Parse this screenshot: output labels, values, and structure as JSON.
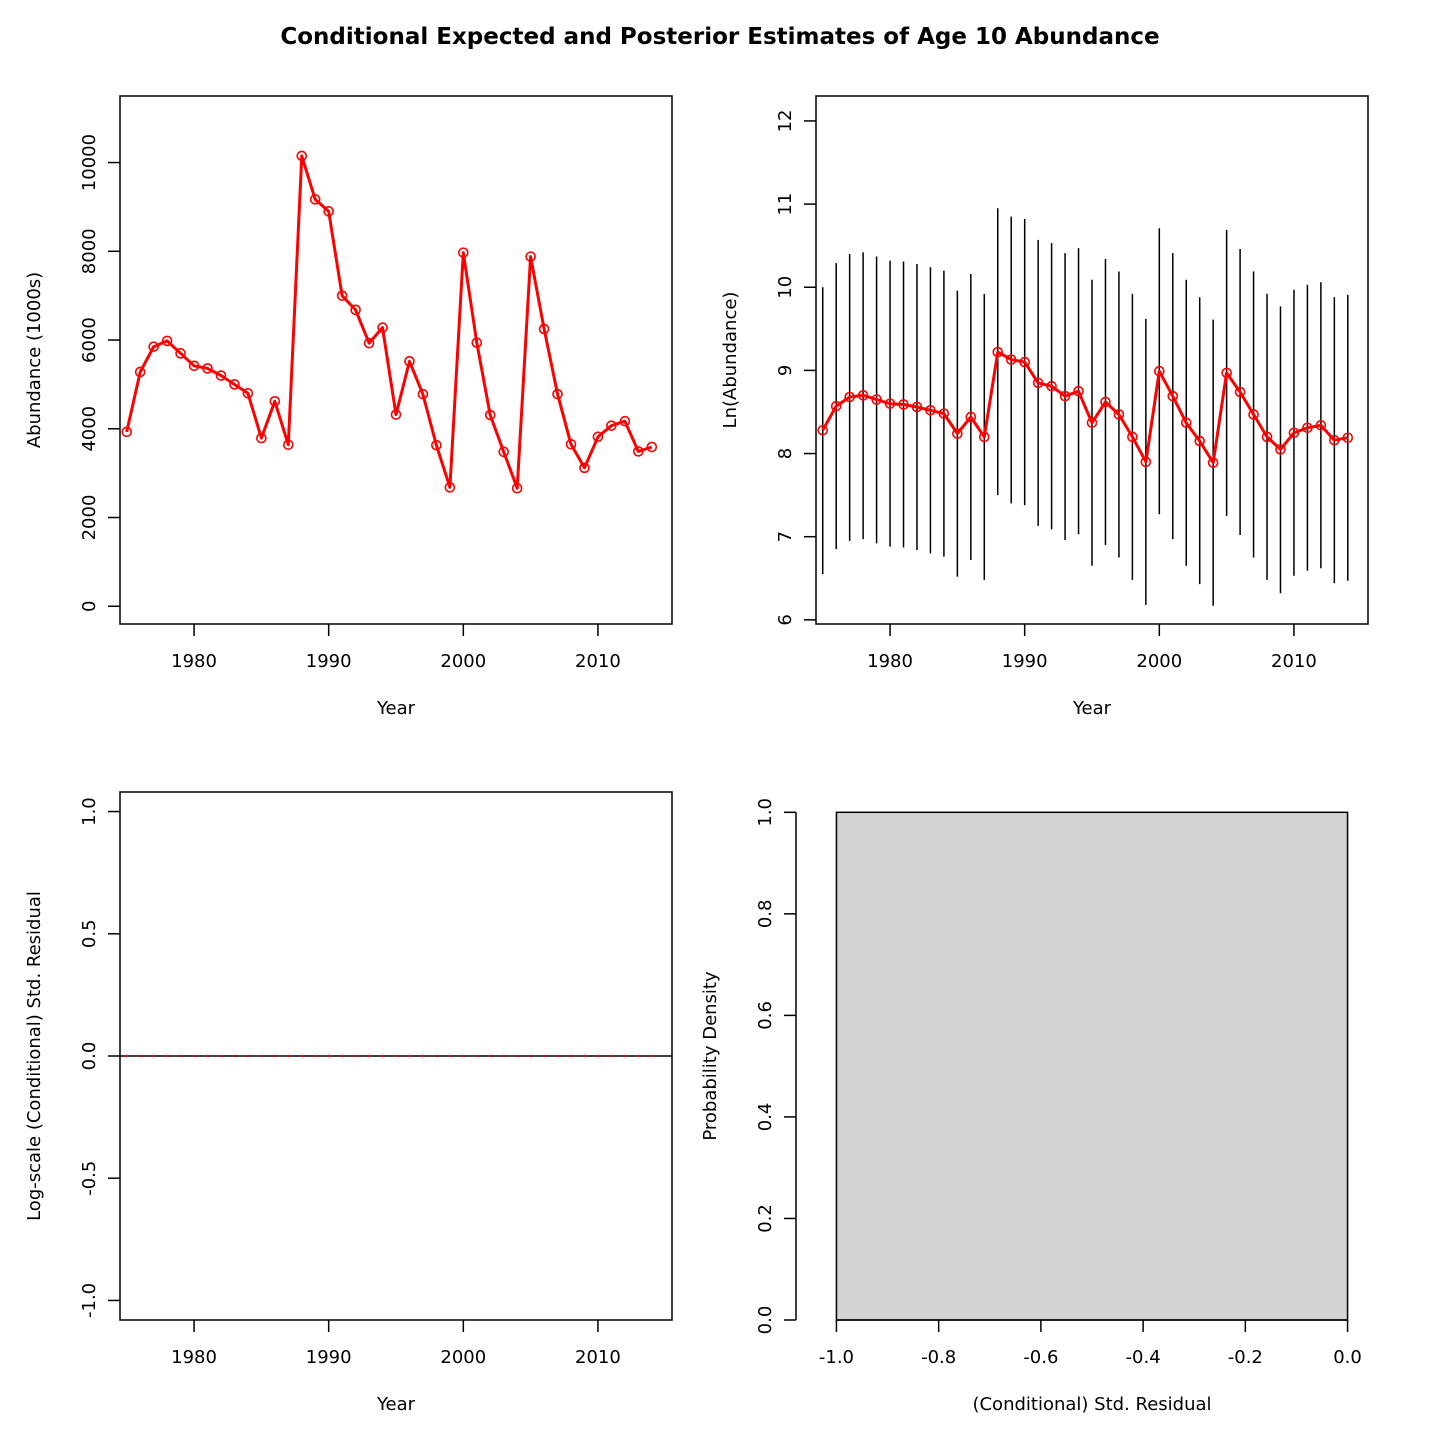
{
  "title": "Conditional Expected and Posterior Estimates of Age 10 Abundance",
  "colors": {
    "series": "#ff0000",
    "axis": "#000000",
    "bar_fill": "#d3d3d3"
  },
  "chart_data": [
    {
      "type": "line",
      "xlabel": "Year",
      "ylabel": "Abundance (1000s)",
      "xlim": [
        1974.5,
        2015.5
      ],
      "ylim": [
        -400,
        11500
      ],
      "xticks": [
        1980,
        1990,
        2000,
        2010
      ],
      "yticks": [
        0,
        2000,
        4000,
        6000,
        8000,
        10000
      ],
      "x": [
        1975,
        1976,
        1977,
        1978,
        1979,
        1980,
        1981,
        1982,
        1983,
        1984,
        1985,
        1986,
        1987,
        1988,
        1989,
        1990,
        1991,
        1992,
        1993,
        1994,
        1995,
        1996,
        1997,
        1998,
        1999,
        2000,
        2001,
        2002,
        2003,
        2004,
        2005,
        2006,
        2007,
        2008,
        2009,
        2010,
        2011,
        2012,
        2013,
        2014
      ],
      "series": [
        {
          "values": [
            3930,
            5280,
            5850,
            5980,
            5700,
            5420,
            5360,
            5200,
            5000,
            4800,
            3790,
            4620,
            3640,
            10150,
            9170,
            8900,
            7000,
            6680,
            5930,
            6280,
            4320,
            5520,
            4780,
            3630,
            2680,
            7970,
            5940,
            4310,
            3480,
            2660,
            7880,
            6250,
            4780,
            3650,
            3120,
            3820,
            4070,
            4170,
            3490,
            3590
          ]
        }
      ]
    },
    {
      "type": "line",
      "xlabel": "Year",
      "ylabel": "Ln(Abundance)",
      "xlim": [
        1974.5,
        2015.5
      ],
      "ylim": [
        5.95,
        12.3
      ],
      "xticks": [
        1980,
        1990,
        2000,
        2010
      ],
      "yticks": [
        6,
        7,
        8,
        9,
        10,
        11,
        12
      ],
      "x": [
        1975,
        1976,
        1977,
        1978,
        1979,
        1980,
        1981,
        1982,
        1983,
        1984,
        1985,
        1986,
        1987,
        1988,
        1989,
        1990,
        1991,
        1992,
        1993,
        1994,
        1995,
        1996,
        1997,
        1998,
        1999,
        2000,
        2001,
        2002,
        2003,
        2004,
        2005,
        2006,
        2007,
        2008,
        2009,
        2010,
        2011,
        2012,
        2013,
        2014
      ],
      "series": [
        {
          "values": [
            8.28,
            8.57,
            8.68,
            8.7,
            8.65,
            8.6,
            8.59,
            8.56,
            8.52,
            8.48,
            8.24,
            8.44,
            8.2,
            9.22,
            9.13,
            9.1,
            8.85,
            8.81,
            8.69,
            8.75,
            8.37,
            8.62,
            8.47,
            8.2,
            7.9,
            8.99,
            8.69,
            8.37,
            8.15,
            7.89,
            8.97,
            8.74,
            8.47,
            8.2,
            8.05,
            8.25,
            8.31,
            8.34,
            8.16,
            8.19
          ]
        }
      ],
      "error_bars": {
        "lower": [
          6.55,
          6.85,
          6.95,
          6.97,
          6.92,
          6.88,
          6.87,
          6.84,
          6.8,
          6.76,
          6.52,
          6.72,
          6.48,
          7.5,
          7.4,
          7.38,
          7.13,
          7.09,
          6.96,
          7.03,
          6.65,
          6.9,
          6.75,
          6.48,
          6.18,
          7.27,
          6.97,
          6.65,
          6.43,
          6.17,
          7.25,
          7.02,
          6.75,
          6.48,
          6.32,
          6.53,
          6.59,
          6.62,
          6.44,
          6.47
        ],
        "upper": [
          10.0,
          10.29,
          10.4,
          10.42,
          10.37,
          10.32,
          10.31,
          10.28,
          10.24,
          10.2,
          9.96,
          10.16,
          9.92,
          10.95,
          10.85,
          10.82,
          10.57,
          10.53,
          10.41,
          10.47,
          10.09,
          10.34,
          10.19,
          9.92,
          9.62,
          10.71,
          10.41,
          10.09,
          9.88,
          9.61,
          10.69,
          10.46,
          10.19,
          9.92,
          9.77,
          9.97,
          10.03,
          10.06,
          9.88,
          9.91
        ]
      }
    },
    {
      "type": "scatter",
      "xlabel": "Year",
      "ylabel": "Log-scale (Conditional) Std. Residual",
      "xlim": [
        1974.5,
        2015.5
      ],
      "ylim": [
        -1.08,
        1.08
      ],
      "xticks": [
        1980,
        1990,
        2000,
        2010
      ],
      "yticks": [
        -1.0,
        -0.5,
        0.0,
        0.5,
        1.0
      ],
      "reference_line": 0,
      "x": [
        1975,
        1976,
        1977,
        1978,
        1979,
        1980,
        1981,
        1982,
        1983,
        1984,
        1985,
        1986,
        1987,
        1988,
        1989,
        1990,
        1991,
        1992,
        1993,
        1994,
        1995,
        1996,
        1997,
        1998,
        1999,
        2000,
        2001,
        2002,
        2003,
        2004,
        2005,
        2006,
        2007,
        2008,
        2009,
        2010,
        2011,
        2012,
        2013,
        2014
      ],
      "series": [
        {
          "values": [
            0,
            0,
            0,
            0,
            0,
            0,
            0,
            0,
            0,
            0,
            0,
            0,
            0,
            0,
            0,
            0,
            0,
            0,
            0,
            0,
            0,
            0,
            0,
            0,
            0,
            0,
            0,
            0,
            0,
            0,
            0,
            0,
            0,
            0,
            0,
            0,
            0,
            0,
            0,
            0
          ]
        }
      ]
    },
    {
      "type": "bar",
      "xlabel": "(Conditional) Std. Residual",
      "ylabel": "Probability Density",
      "xlim": [
        -1.04,
        0.04
      ],
      "ylim": [
        0,
        1.04
      ],
      "xticks": [
        -1.0,
        -0.8,
        -0.6,
        -0.4,
        -0.2,
        0.0
      ],
      "yticks": [
        0.0,
        0.2,
        0.4,
        0.6,
        0.8,
        1.0
      ],
      "bins": [
        {
          "from": -1.0,
          "to": 0.0,
          "density": 1.0
        }
      ]
    }
  ]
}
